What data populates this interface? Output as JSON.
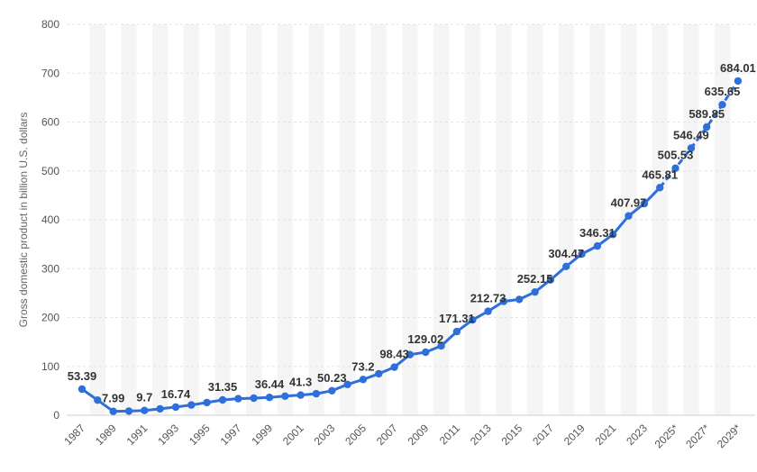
{
  "chart_data": {
    "type": "line",
    "title": "",
    "xlabel": "",
    "ylabel": "Gross domestic product in billion U.S. dollars",
    "ylim": [
      0,
      800
    ],
    "yticks": [
      "0",
      "100",
      "200",
      "300",
      "400",
      "500",
      "600",
      "700",
      "800"
    ],
    "grid": true,
    "legend": "none",
    "line_color": "#2f6fd9",
    "categories": [
      "1987",
      "1988",
      "1989",
      "1990",
      "1991",
      "1992",
      "1993",
      "1994",
      "1995",
      "1996",
      "1997",
      "1998",
      "1999",
      "2000",
      "2001",
      "2002",
      "2003",
      "2004",
      "2005",
      "2006",
      "2007",
      "2008",
      "2009",
      "2010",
      "2011",
      "2012",
      "2013",
      "2014",
      "2015",
      "2016",
      "2017",
      "2018",
      "2019",
      "2020",
      "2021",
      "2022",
      "2023",
      "2024",
      "2025*",
      "2026*",
      "2027*",
      "2028*",
      "2029*"
    ],
    "xtick_labels": [
      "1987",
      "1989",
      "1991",
      "1993",
      "1995",
      "1997",
      "1999",
      "2001",
      "2003",
      "2005",
      "2007",
      "2009",
      "2011",
      "2013",
      "2015",
      "2017",
      "2019",
      "2021",
      "2023",
      "2025*",
      "2027*",
      "2029*"
    ],
    "values": [
      53.39,
      31,
      7.99,
      8.5,
      9.7,
      13,
      16.74,
      21,
      26,
      31.35,
      34,
      35,
      36.44,
      39,
      41.3,
      44,
      50.23,
      63,
      73.2,
      85,
      98.43,
      124,
      129.02,
      142,
      171.31,
      195,
      212.73,
      233,
      237,
      252.15,
      277,
      304.47,
      330,
      346.31,
      370,
      407.97,
      433,
      465.81,
      505.53,
      546.49,
      589.85,
      635.65,
      684.01
    ],
    "labels": [
      {
        "index": 0,
        "text": "53.39"
      },
      {
        "index": 2,
        "text": "7.99"
      },
      {
        "index": 4,
        "text": "9.7"
      },
      {
        "index": 6,
        "text": "16.74"
      },
      {
        "index": 9,
        "text": "31.35"
      },
      {
        "index": 12,
        "text": "36.44"
      },
      {
        "index": 14,
        "text": "41.3"
      },
      {
        "index": 16,
        "text": "50.23"
      },
      {
        "index": 18,
        "text": "73.2"
      },
      {
        "index": 20,
        "text": "98.43"
      },
      {
        "index": 22,
        "text": "129.02"
      },
      {
        "index": 24,
        "text": "171.31"
      },
      {
        "index": 26,
        "text": "212.73"
      },
      {
        "index": 29,
        "text": "252.15"
      },
      {
        "index": 31,
        "text": "304.47"
      },
      {
        "index": 33,
        "text": "346.31"
      },
      {
        "index": 35,
        "text": "407.97"
      },
      {
        "index": 37,
        "text": "465.81"
      },
      {
        "index": 38,
        "text": "505.53"
      },
      {
        "index": 39,
        "text": "546.49"
      },
      {
        "index": 40,
        "text": "589.85"
      },
      {
        "index": 41,
        "text": "635.65"
      },
      {
        "index": 42,
        "text": "684.01"
      }
    ]
  }
}
